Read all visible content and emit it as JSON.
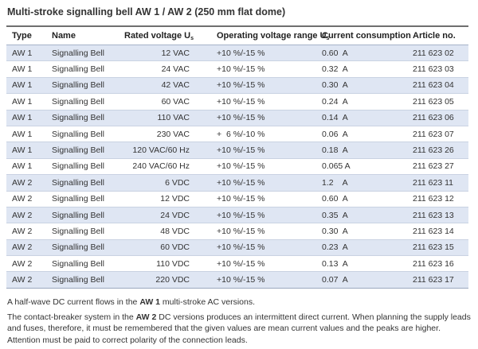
{
  "title": "Multi-stroke signalling bell AW 1 / AW 2 (250 mm flat dome)",
  "table": {
    "headers": {
      "type": "Type",
      "name": "Name",
      "rated_voltage": "Rated voltage U",
      "rated_voltage_sub": "s",
      "operating_range": "Operating voltage range U",
      "operating_range_sub": "s",
      "current": "Current consumption",
      "article": "Article no."
    },
    "rows": [
      {
        "type": "AW 1",
        "name": "Signalling Bell",
        "voltage": "12 VAC",
        "range": "+10 %/-15 %",
        "current": "0.60  A",
        "article": "211 623 02"
      },
      {
        "type": "AW 1",
        "name": "Signalling Bell",
        "voltage": "24 VAC",
        "range": "+10 %/-15 %",
        "current": "0.32  A",
        "article": "211 623 03"
      },
      {
        "type": "AW 1",
        "name": "Signalling Bell",
        "voltage": "42 VAC",
        "range": "+10 %/-15 %",
        "current": "0.30  A",
        "article": "211 623 04"
      },
      {
        "type": "AW 1",
        "name": "Signalling Bell",
        "voltage": "60 VAC",
        "range": "+10 %/-15 %",
        "current": "0.24  A",
        "article": "211 623 05"
      },
      {
        "type": "AW 1",
        "name": "Signalling Bell",
        "voltage": "110 VAC",
        "range": "+10 %/-15 %",
        "current": "0.14  A",
        "article": "211 623 06"
      },
      {
        "type": "AW 1",
        "name": "Signalling Bell",
        "voltage": "230 VAC",
        "range": "+  6 %/-10 %",
        "current": "0.06  A",
        "article": "211 623 07"
      },
      {
        "type": "AW 1",
        "name": "Signalling Bell",
        "voltage": "120 VAC/60 Hz",
        "range": "+10 %/-15 %",
        "current": "0.18  A",
        "article": "211 623 26"
      },
      {
        "type": "AW 1",
        "name": "Signalling Bell",
        "voltage": "240 VAC/60 Hz",
        "range": "+10 %/-15 %",
        "current": "0.065 A",
        "article": "211 623 27"
      },
      {
        "type": "AW 2",
        "name": "Signalling Bell",
        "voltage": "6 VDC",
        "range": "+10 %/-15 %",
        "current": "1.2    A",
        "article": "211 623 11"
      },
      {
        "type": "AW 2",
        "name": "Signalling Bell",
        "voltage": "12 VDC",
        "range": "+10 %/-15 %",
        "current": "0.60  A",
        "article": "211 623 12"
      },
      {
        "type": "AW 2",
        "name": "Signalling Bell",
        "voltage": "24 VDC",
        "range": "+10 %/-15 %",
        "current": "0.35  A",
        "article": "211 623 13"
      },
      {
        "type": "AW 2",
        "name": "Signalling Bell",
        "voltage": "48 VDC",
        "range": "+10 %/-15 %",
        "current": "0.30  A",
        "article": "211 623 14"
      },
      {
        "type": "AW 2",
        "name": "Signalling Bell",
        "voltage": "60 VDC",
        "range": "+10 %/-15 %",
        "current": "0.23  A",
        "article": "211 623 15"
      },
      {
        "type": "AW 2",
        "name": "Signalling Bell",
        "voltage": "110 VDC",
        "range": "+10 %/-15 %",
        "current": "0.13  A",
        "article": "211 623 16"
      },
      {
        "type": "AW 2",
        "name": "Signalling Bell",
        "voltage": "220 VDC",
        "range": "+10 %/-15 %",
        "current": "0.07  A",
        "article": "211 623 17"
      }
    ]
  },
  "notes": {
    "note1_pre": "A half-wave DC current flows in the ",
    "note1_bold": "AW 1",
    "note1_post": " multi-stroke AC versions.",
    "note2_pre": "The contact-breaker system in the ",
    "note2_bold": "AW 2",
    "note2_post": " DC versions produces an intermittent direct current. When planning the supply leads and fuses, therefore, it must be remembered that the given values are mean current values and the peaks are higher. Attention must be paid to correct polarity of the connection leads."
  },
  "colors": {
    "row_stripe": "#dfe6f3",
    "row_plain": "#ffffff",
    "rule_dark": "#6f6f6f"
  }
}
